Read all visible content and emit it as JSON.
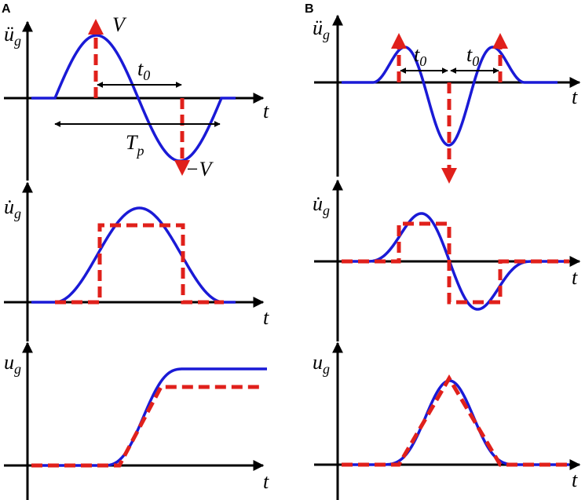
{
  "panels": [
    {
      "label": "A",
      "plots": [
        {
          "y_label": {
            "main": "ü",
            "sub": "g"
          },
          "x_label": "t"
        },
        {
          "y_label": {
            "main": "u̇",
            "sub": "g"
          },
          "x_label": "t"
        },
        {
          "y_label": {
            "main": "u",
            "sub": "g"
          },
          "x_label": "t"
        }
      ],
      "annotations": {
        "amplitude": "V",
        "negative_amplitude": "−V",
        "t0": {
          "main": "t",
          "sub": "0"
        },
        "period": {
          "main": "T",
          "sub": "p"
        }
      }
    },
    {
      "label": "B",
      "plots": [
        {
          "y_label": {
            "main": "ü",
            "sub": "g"
          },
          "x_label": "t"
        },
        {
          "y_label": {
            "main": "u̇",
            "sub": "g"
          },
          "x_label": "t"
        },
        {
          "y_label": {
            "main": "u",
            "sub": "g"
          },
          "x_label": "t"
        }
      ],
      "annotations": {
        "t0_left": {
          "main": "t",
          "sub": "0"
        },
        "t0_right": {
          "main": "t",
          "sub": "0"
        }
      }
    }
  ]
}
